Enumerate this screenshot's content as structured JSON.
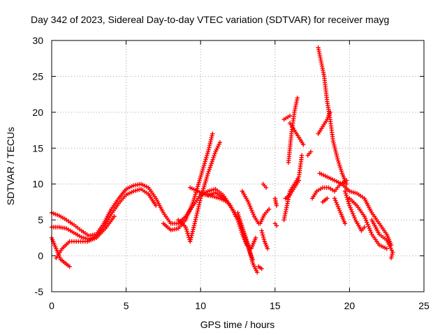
{
  "chart_data": {
    "type": "scatter",
    "title": "Day 342 of 2023, Sidereal Day-to-day VTEC variation (SDTVAR) for receiver mayg",
    "xlabel": "GPS time / hours",
    "ylabel": "SDTVAR / TECUs",
    "xlim": [
      0,
      25
    ],
    "ylim": [
      -5,
      30
    ],
    "x_ticks": [
      0,
      5,
      10,
      15,
      20,
      25
    ],
    "y_ticks": [
      -5,
      0,
      5,
      10,
      15,
      20,
      25,
      30
    ],
    "grid": true,
    "marker": "+",
    "series_color": "#ff0000",
    "tracks": [
      {
        "name": "track-01",
        "points": [
          [
            0.0,
            6.0
          ],
          [
            0.5,
            5.6
          ],
          [
            1.0,
            5.0
          ],
          [
            1.5,
            4.3
          ],
          [
            2.0,
            3.5
          ],
          [
            2.5,
            2.8
          ],
          [
            3.0,
            3.0
          ],
          [
            3.5,
            4.5
          ],
          [
            4.0,
            6.5
          ],
          [
            4.5,
            8.0
          ],
          [
            5.0,
            9.3
          ],
          [
            5.5,
            9.8
          ],
          [
            6.0,
            10.0
          ],
          [
            6.5,
            9.5
          ],
          [
            7.0,
            8.0
          ],
          [
            7.5,
            6.0
          ],
          [
            8.0,
            4.5
          ],
          [
            8.5,
            4.5
          ],
          [
            9.0,
            5.5
          ],
          [
            9.5,
            7.0
          ],
          [
            10.0,
            8.5
          ],
          [
            10.5,
            9.0
          ],
          [
            11.0,
            9.3
          ],
          [
            11.5,
            8.5
          ],
          [
            12.0,
            7.0
          ],
          [
            12.5,
            5.0
          ],
          [
            13.0,
            2.5
          ],
          [
            13.3,
            0.5
          ],
          [
            13.5,
            -0.5
          ]
        ]
      },
      {
        "name": "track-02",
        "points": [
          [
            0.0,
            4.0
          ],
          [
            0.5,
            4.0
          ],
          [
            1.0,
            3.8
          ],
          [
            1.5,
            3.2
          ],
          [
            2.0,
            2.6
          ],
          [
            2.5,
            2.3
          ],
          [
            3.0,
            2.8
          ],
          [
            3.5,
            4.0
          ],
          [
            4.0,
            5.8
          ],
          [
            4.5,
            7.3
          ],
          [
            5.0,
            8.5
          ],
          [
            5.5,
            9.0
          ],
          [
            6.0,
            9.3
          ],
          [
            6.5,
            8.6
          ],
          [
            7.0,
            7.0
          ]
        ]
      },
      {
        "name": "track-03",
        "points": [
          [
            0.0,
            2.5
          ],
          [
            0.3,
            1.0
          ],
          [
            0.6,
            -0.5
          ],
          [
            0.9,
            -1.0
          ],
          [
            1.2,
            -1.5
          ]
        ]
      },
      {
        "name": "track-04",
        "points": [
          [
            0.3,
            -0.3
          ],
          [
            0.7,
            1.0
          ],
          [
            1.2,
            2.0
          ],
          [
            1.8,
            2.0
          ],
          [
            2.4,
            2.0
          ],
          [
            3.0,
            2.5
          ],
          [
            3.6,
            3.8
          ],
          [
            4.2,
            5.5
          ]
        ]
      },
      {
        "name": "track-05",
        "points": [
          [
            7.5,
            4.5
          ],
          [
            8.0,
            3.6
          ],
          [
            8.5,
            3.8
          ],
          [
            9.0,
            5.0
          ],
          [
            9.5,
            7.5
          ],
          [
            10.0,
            11.0
          ],
          [
            10.5,
            14.5
          ],
          [
            10.8,
            17.0
          ]
        ]
      },
      {
        "name": "track-06",
        "points": [
          [
            8.5,
            5.0
          ],
          [
            9.0,
            4.0
          ],
          [
            9.3,
            2.0
          ],
          [
            9.6,
            4.5
          ],
          [
            10.0,
            8.0
          ],
          [
            10.5,
            11.5
          ],
          [
            11.0,
            14.5
          ],
          [
            11.3,
            15.8
          ]
        ]
      },
      {
        "name": "track-07",
        "points": [
          [
            9.3,
            9.5
          ],
          [
            9.8,
            9.0
          ],
          [
            10.3,
            8.5
          ],
          [
            10.8,
            8.3
          ],
          [
            11.3,
            8.0
          ],
          [
            11.8,
            7.5
          ],
          [
            12.3,
            6.0
          ],
          [
            12.8,
            4.0
          ],
          [
            13.2,
            1.5
          ],
          [
            13.5,
            -1.0
          ],
          [
            13.8,
            -2.3
          ]
        ]
      },
      {
        "name": "track-08",
        "points": [
          [
            10.5,
            8.5
          ],
          [
            11.0,
            8.8
          ],
          [
            11.5,
            8.2
          ],
          [
            12.0,
            7.0
          ],
          [
            12.5,
            5.0
          ],
          [
            12.8,
            3.0
          ],
          [
            13.1,
            1.5
          ],
          [
            13.4,
            1.0
          ],
          [
            13.7,
            2.5
          ]
        ]
      },
      {
        "name": "track-09",
        "points": [
          [
            12.5,
            6.0
          ],
          [
            12.8,
            4.0
          ],
          [
            13.0,
            2.0
          ],
          [
            13.3,
            1.0
          ]
        ]
      },
      {
        "name": "track-10",
        "points": [
          [
            12.8,
            9.0
          ],
          [
            13.2,
            7.5
          ],
          [
            13.6,
            5.5
          ],
          [
            13.9,
            4.5
          ]
        ]
      },
      {
        "name": "track-11",
        "points": [
          [
            14.0,
            4.5
          ],
          [
            14.3,
            5.8
          ],
          [
            14.6,
            6.5
          ]
        ]
      },
      {
        "name": "track-12",
        "points": [
          [
            14.1,
            3.5
          ],
          [
            14.3,
            2.0
          ],
          [
            14.5,
            1.0
          ]
        ]
      },
      {
        "name": "track-13",
        "points": [
          [
            13.9,
            -1.5
          ],
          [
            14.1,
            -1.8
          ]
        ]
      },
      {
        "name": "track-14",
        "points": [
          [
            14.2,
            10.0
          ],
          [
            14.4,
            9.5
          ]
        ]
      },
      {
        "name": "track-15",
        "points": [
          [
            15.0,
            8.0
          ],
          [
            15.1,
            7.0
          ]
        ]
      },
      {
        "name": "track-16",
        "points": [
          [
            15.0,
            4.5
          ],
          [
            15.1,
            4.2
          ]
        ]
      },
      {
        "name": "track-17",
        "points": [
          [
            15.6,
            5.0
          ],
          [
            15.8,
            7.0
          ],
          [
            16.0,
            9.0
          ],
          [
            16.3,
            10.0
          ],
          [
            16.6,
            11.0
          ],
          [
            16.8,
            14.0
          ]
        ]
      },
      {
        "name": "track-18",
        "points": [
          [
            15.6,
            19.0
          ],
          [
            16.0,
            19.5
          ]
        ]
      },
      {
        "name": "track-19",
        "points": [
          [
            16.0,
            18.5
          ],
          [
            16.3,
            17.5
          ],
          [
            16.6,
            16.5
          ],
          [
            16.9,
            15.5
          ]
        ]
      },
      {
        "name": "track-20",
        "points": [
          [
            15.9,
            13.0
          ],
          [
            16.1,
            17.0
          ],
          [
            16.3,
            20.0
          ],
          [
            16.5,
            22.0
          ]
        ]
      },
      {
        "name": "track-21",
        "points": [
          [
            15.7,
            8.0
          ],
          [
            16.0,
            8.5
          ],
          [
            16.3,
            9.5
          ],
          [
            16.6,
            10.5
          ]
        ]
      },
      {
        "name": "track-22",
        "points": [
          [
            17.2,
            14.0
          ],
          [
            17.4,
            14.5
          ]
        ]
      },
      {
        "name": "track-23",
        "points": [
          [
            17.9,
            29.0
          ],
          [
            18.1,
            27.0
          ],
          [
            18.3,
            25.0
          ],
          [
            18.5,
            21.5
          ],
          [
            18.7,
            19.0
          ],
          [
            18.9,
            16.0
          ],
          [
            19.2,
            13.5
          ],
          [
            19.5,
            11.5
          ],
          [
            19.8,
            10.0
          ]
        ]
      },
      {
        "name": "track-24",
        "points": [
          [
            17.9,
            17.0
          ],
          [
            18.2,
            18.0
          ],
          [
            18.5,
            19.0
          ],
          [
            18.7,
            20.0
          ]
        ]
      },
      {
        "name": "track-25",
        "points": [
          [
            17.5,
            8.0
          ],
          [
            17.8,
            9.0
          ],
          [
            18.2,
            9.5
          ],
          [
            18.6,
            9.5
          ],
          [
            19.0,
            9.0
          ],
          [
            19.4,
            10.0
          ],
          [
            19.8,
            10.5
          ]
        ]
      },
      {
        "name": "track-26",
        "points": [
          [
            18.0,
            11.5
          ],
          [
            18.5,
            11.0
          ],
          [
            19.0,
            10.5
          ],
          [
            19.5,
            10.0
          ],
          [
            20.0,
            9.0
          ],
          [
            20.5,
            8.7
          ],
          [
            21.0,
            8.0
          ],
          [
            21.5,
            6.0
          ],
          [
            22.0,
            4.5
          ],
          [
            22.5,
            3.0
          ],
          [
            22.8,
            1.5
          ]
        ]
      },
      {
        "name": "track-27",
        "points": [
          [
            18.2,
            7.5
          ],
          [
            18.5,
            8.0
          ]
        ]
      },
      {
        "name": "track-28",
        "points": [
          [
            19.7,
            9.0
          ],
          [
            20.0,
            7.0
          ],
          [
            20.4,
            5.0
          ],
          [
            20.8,
            3.5
          ],
          [
            21.0,
            4.0
          ]
        ]
      },
      {
        "name": "track-29",
        "points": [
          [
            20.0,
            8.0
          ],
          [
            20.5,
            7.0
          ],
          [
            21.0,
            5.5
          ],
          [
            21.5,
            3.0
          ],
          [
            22.0,
            1.5
          ],
          [
            22.5,
            1.0
          ]
        ]
      },
      {
        "name": "track-30",
        "points": [
          [
            21.5,
            5.0
          ],
          [
            22.0,
            3.0
          ],
          [
            22.5,
            2.2
          ],
          [
            22.9,
            0.5
          ],
          [
            22.8,
            -0.3
          ]
        ]
      },
      {
        "name": "track-31",
        "points": [
          [
            19.0,
            8.0
          ],
          [
            19.4,
            6.0
          ],
          [
            19.7,
            4.5
          ]
        ]
      }
    ]
  }
}
